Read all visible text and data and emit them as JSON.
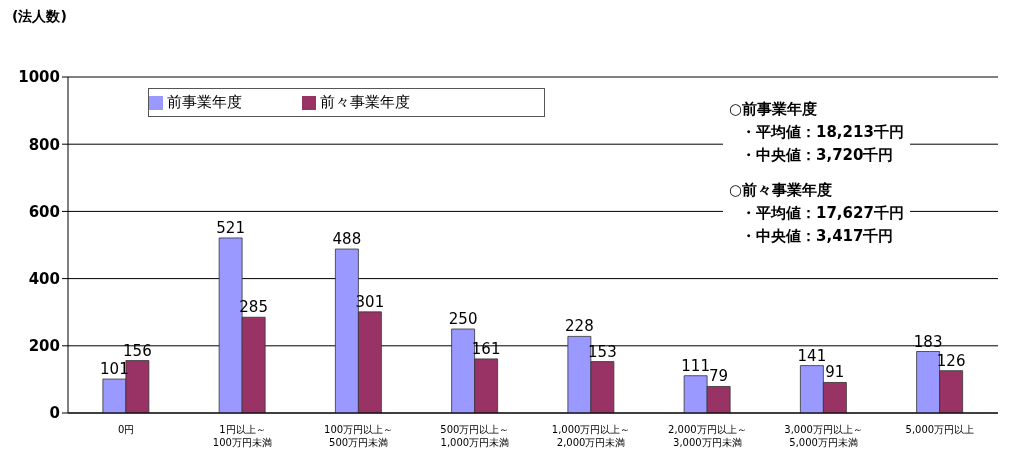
{
  "chart_data": {
    "type": "bar",
    "ylabel": "(法人数)",
    "categories": [
      "0円",
      "1円以上～\n100万円未満",
      "100万円以上～\n500万円未満",
      "500万円以上～\n1,000万円未満",
      "1,000万円以上～\n2,000万円未満",
      "2,000万円以上～\n3,000万円未満",
      "3,000万円以上～\n5,000万円未満",
      "5,000万円以上"
    ],
    "series": [
      {
        "name": "前事業年度",
        "color": "#9999ff",
        "values": [
          101,
          521,
          488,
          250,
          228,
          111,
          141,
          183
        ]
      },
      {
        "name": "前々事業年度",
        "color": "#993366",
        "values": [
          156,
          285,
          301,
          161,
          153,
          79,
          91,
          126
        ]
      }
    ],
    "ylim": [
      0,
      1000
    ],
    "yticks": [
      0,
      200,
      400,
      600,
      800,
      1000
    ],
    "grid": "y",
    "legend": "top",
    "data_labels": true,
    "annotations": [
      "○前事業年度",
      "・平均値：18,213千円",
      "・中央値：3,720千円",
      "○前々事業年度",
      "・平均値：17,627千円",
      "・中央値：3,417千円"
    ]
  }
}
